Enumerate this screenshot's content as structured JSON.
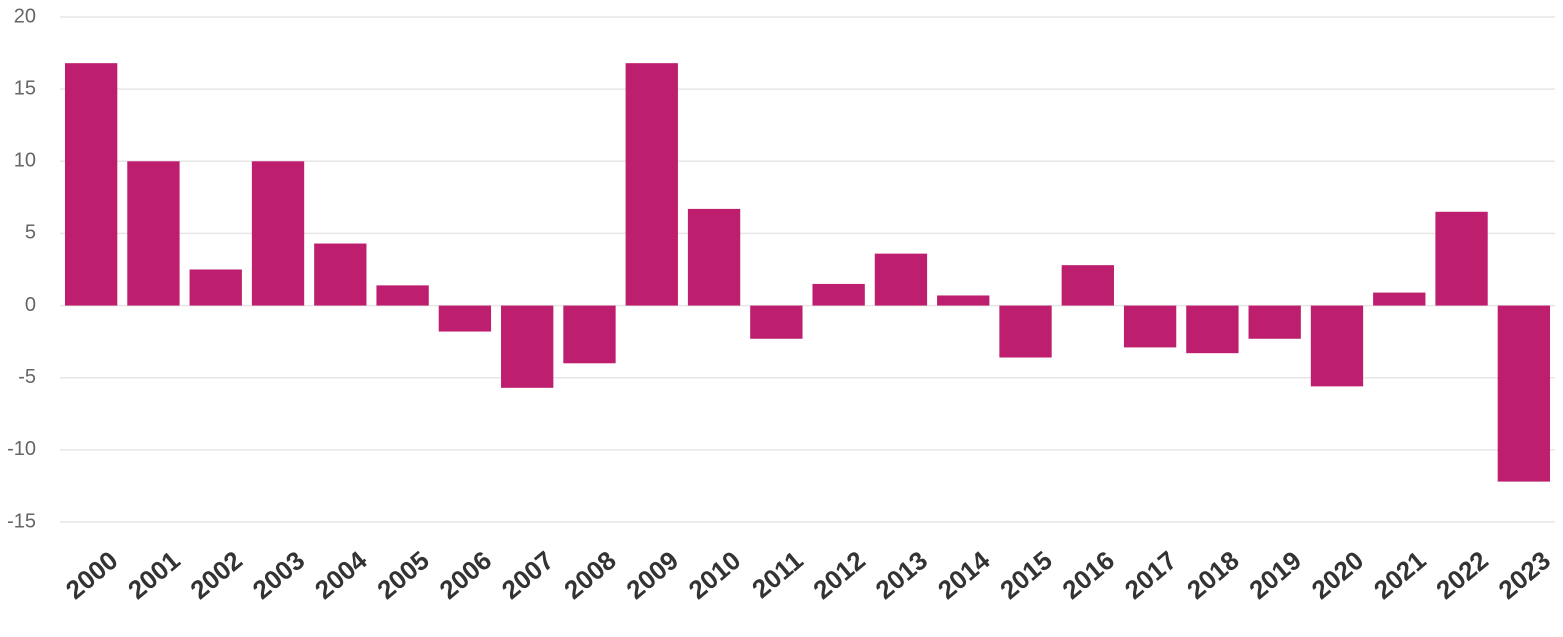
{
  "chart_data": {
    "type": "bar",
    "categories": [
      "2000",
      "2001",
      "2002",
      "2003",
      "2004",
      "2005",
      "2006",
      "2007",
      "2008",
      "2009",
      "2010",
      "2011",
      "2012",
      "2013",
      "2014",
      "2015",
      "2016",
      "2017",
      "2018",
      "2019",
      "2020",
      "2021",
      "2022",
      "2023"
    ],
    "values": [
      16.8,
      10.0,
      2.5,
      10.0,
      4.3,
      1.4,
      -1.8,
      -5.7,
      -4.0,
      16.8,
      6.7,
      -2.3,
      1.5,
      3.6,
      0.7,
      -3.6,
      2.8,
      -2.9,
      -3.3,
      -2.3,
      -5.6,
      0.9,
      6.5,
      -12.2
    ],
    "color": "#be1e6e",
    "ylim": [
      -15,
      20
    ],
    "yticks": [
      -15,
      -10,
      -5,
      0,
      5,
      10,
      15,
      20
    ],
    "grid": true
  }
}
